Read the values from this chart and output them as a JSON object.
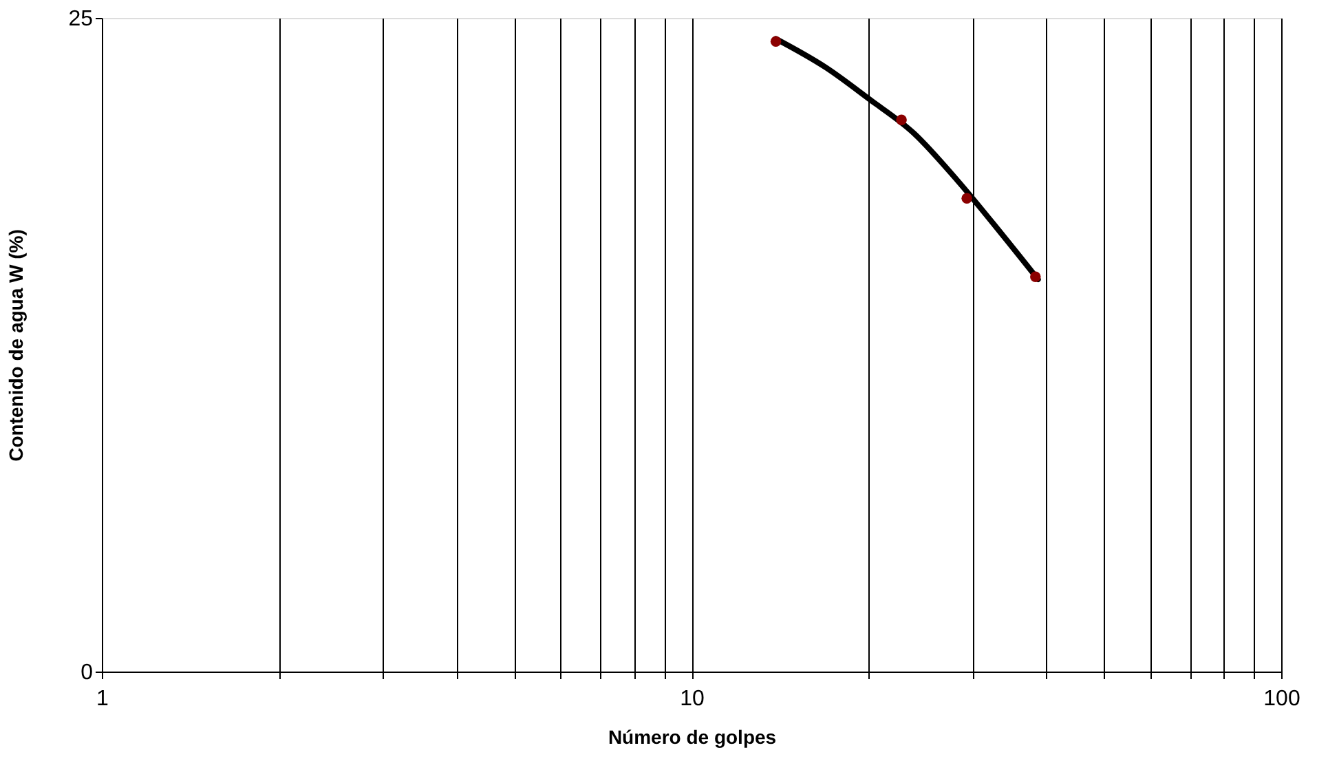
{
  "chart_data": {
    "type": "scatter",
    "xlabel": "Número de golpes",
    "ylabel": "Contenido de agua W (%)",
    "log": "x",
    "xlim": [
      1,
      100
    ],
    "ylim": [
      0,
      25
    ],
    "xticks": [
      1,
      {
        "value": 2,
        "label": null
      },
      {
        "value": 3,
        "label": null
      },
      {
        "value": 4,
        "label": null
      },
      {
        "value": 5,
        "label": null
      },
      {
        "value": 6,
        "label": null
      },
      {
        "value": 7,
        "label": null
      },
      {
        "value": 8,
        "label": null
      },
      {
        "value": 9,
        "label": null
      },
      10,
      {
        "value": 20,
        "label": null
      },
      {
        "value": 30,
        "label": null
      },
      {
        "value": 40,
        "label": null
      },
      {
        "value": 50,
        "label": null
      },
      {
        "value": 60,
        "label": null
      },
      {
        "value": 70,
        "label": null
      },
      {
        "value": 80,
        "label": null
      },
      {
        "value": 90,
        "label": null
      },
      100
    ],
    "yticks": [
      0,
      25
    ],
    "grid": "x",
    "legend": false,
    "series": [
      {
        "type": "line",
        "color": "#000000",
        "x": [
          13.9,
          16.9,
          20.0,
          23.8,
          28.2,
          33.4,
          38.7
        ],
        "values": [
          24.2,
          23.1,
          21.9,
          20.6,
          18.8,
          16.8,
          15.0
        ]
      },
      {
        "type": "scatter",
        "color": "#8b0000",
        "marker": "circle",
        "x": [
          13.9,
          22.7,
          29.3,
          38.3
        ],
        "values": [
          24.1,
          21.1,
          18.1,
          15.1
        ]
      }
    ]
  }
}
